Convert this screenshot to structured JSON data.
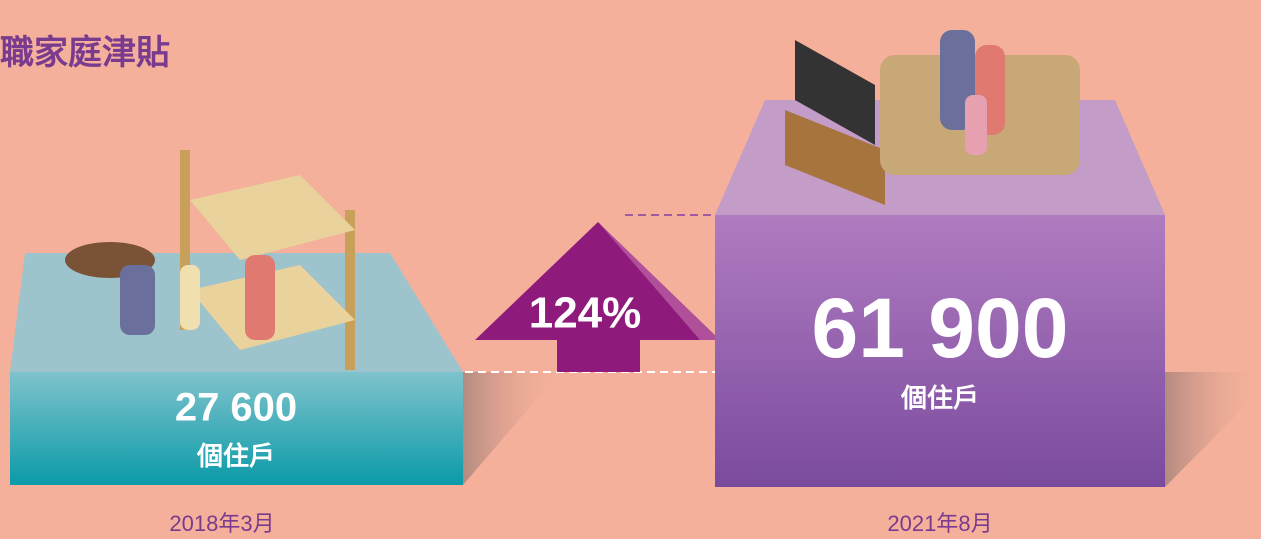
{
  "header": {
    "title": "職家庭津貼"
  },
  "left": {
    "number": "27 600",
    "unit": "個住戶",
    "date": "2018年3月"
  },
  "right": {
    "number": "61 900",
    "unit": "個住戶",
    "date": "2021年8月"
  },
  "change": {
    "label": "124%"
  }
}
